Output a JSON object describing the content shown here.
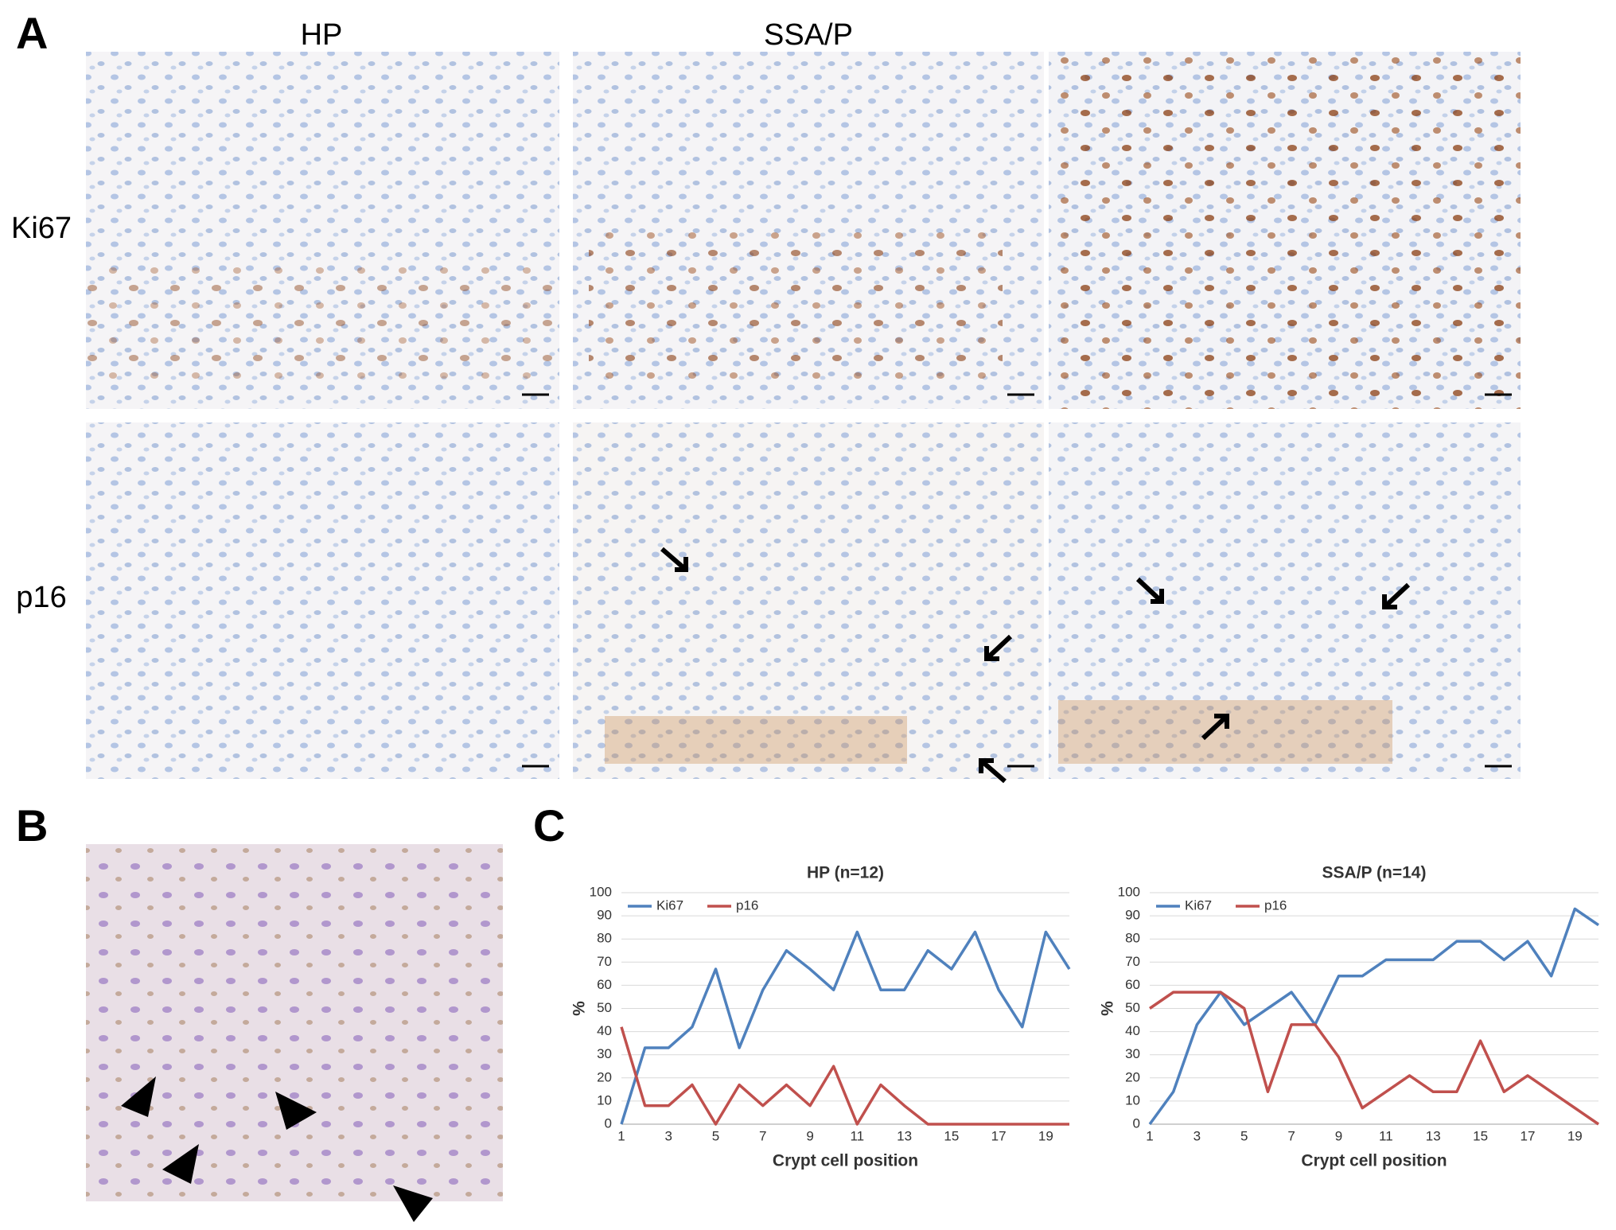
{
  "figure": {
    "panel_labels": [
      "A",
      "B",
      "C"
    ],
    "column_headers": [
      "HP",
      "SSA/P"
    ],
    "row_labels": [
      "Ki67",
      "p16"
    ]
  },
  "chart_data": [
    {
      "type": "line",
      "title": "HP (n=12)",
      "x_label": "Crypt cell position",
      "y_label": "%",
      "x": [
        1,
        2,
        3,
        4,
        5,
        6,
        7,
        8,
        9,
        10,
        11,
        12,
        13,
        14,
        15,
        16,
        17,
        18,
        19,
        20
      ],
      "series": [
        {
          "name": "Ki67",
          "color": "#4f81bd",
          "values": [
            0,
            33,
            33,
            42,
            67,
            33,
            58,
            75,
            67,
            58,
            83,
            58,
            58,
            75,
            67,
            83,
            58,
            42,
            83,
            67
          ]
        },
        {
          "name": "p16",
          "color": "#c0504d",
          "values": [
            42,
            8,
            8,
            17,
            0,
            17,
            8,
            17,
            8,
            25,
            0,
            17,
            8,
            0,
            0,
            0,
            0,
            0,
            0,
            0
          ]
        }
      ],
      "xlim": [
        1,
        20
      ],
      "ylim": [
        0,
        100
      ],
      "xticks": [
        1,
        3,
        5,
        7,
        9,
        11,
        13,
        15,
        17,
        19
      ],
      "yticks": [
        0,
        10,
        20,
        30,
        40,
        50,
        60,
        70,
        80,
        90,
        100
      ],
      "grid": true,
      "legend": "top-left"
    },
    {
      "type": "line",
      "title": "SSA/P (n=14)",
      "x_label": "Crypt cell position",
      "y_label": "%",
      "x": [
        1,
        2,
        3,
        4,
        5,
        6,
        7,
        8,
        9,
        10,
        11,
        12,
        13,
        14,
        15,
        16,
        17,
        18,
        19,
        20
      ],
      "series": [
        {
          "name": "Ki67",
          "color": "#4f81bd",
          "values": [
            0,
            14,
            43,
            57,
            43,
            50,
            57,
            43,
            64,
            64,
            71,
            71,
            71,
            79,
            79,
            71,
            79,
            64,
            93,
            86
          ]
        },
        {
          "name": "p16",
          "color": "#c0504d",
          "values": [
            50,
            57,
            57,
            57,
            50,
            14,
            43,
            43,
            29,
            7,
            14,
            21,
            14,
            14,
            36,
            14,
            21,
            14,
            7,
            0
          ]
        }
      ],
      "xlim": [
        1,
        20
      ],
      "ylim": [
        0,
        100
      ],
      "xticks": [
        1,
        3,
        5,
        7,
        9,
        11,
        13,
        15,
        17,
        19
      ],
      "yticks": [
        0,
        10,
        20,
        30,
        40,
        50,
        60,
        70,
        80,
        90,
        100
      ],
      "grid": true,
      "legend": "top-left"
    }
  ]
}
